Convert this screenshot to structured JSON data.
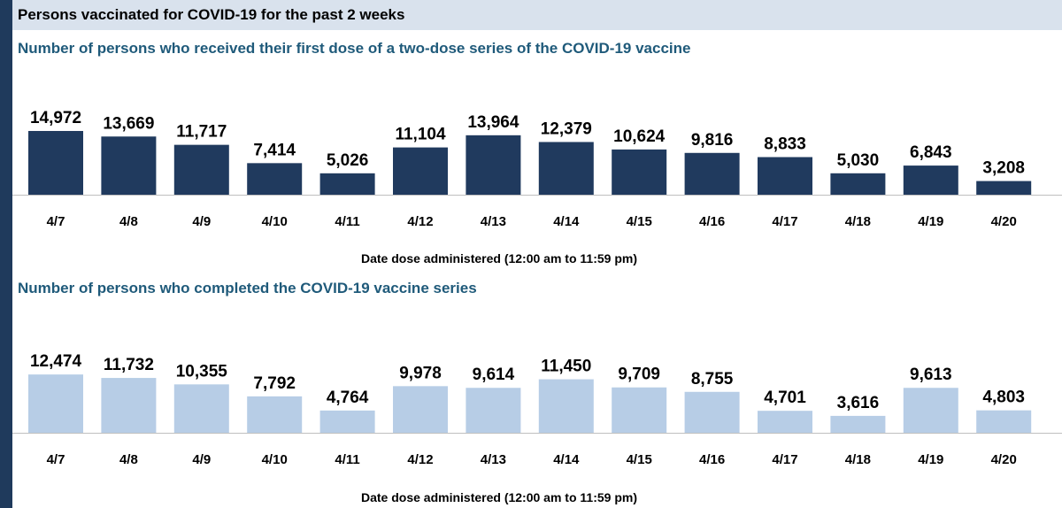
{
  "header": {
    "title": "Persons vaccinated for COVID-19 for the past 2 weeks"
  },
  "colors": {
    "first_dose": "#203a5e",
    "completed": "#b7cde6",
    "subtitle": "#1f5a7a",
    "header_bg": "#d9e2ed",
    "left_rule": "#1f3a5c"
  },
  "chart_data": [
    {
      "type": "bar",
      "title": "Number of persons who received their first dose of a two-dose series of the COVID-19 vaccine",
      "xlabel": "Date dose administered (12:00 am to 11:59 pm)",
      "ylabel": "",
      "categories": [
        "4/7",
        "4/8",
        "4/9",
        "4/10",
        "4/11",
        "4/12",
        "4/13",
        "4/14",
        "4/15",
        "4/16",
        "4/17",
        "4/18",
        "4/19",
        "4/20"
      ],
      "values": [
        14972,
        13669,
        11717,
        7414,
        5026,
        11104,
        13964,
        12379,
        10624,
        9816,
        8833,
        5030,
        6843,
        3208
      ],
      "data_labels": [
        "14,972",
        "13,669",
        "11,717",
        "7,414",
        "5,026",
        "11,104",
        "13,964",
        "12,379",
        "10,624",
        "9,816",
        "8,833",
        "5,030",
        "6,843",
        "3,208"
      ],
      "grid": false,
      "legend": "none"
    },
    {
      "type": "bar",
      "title": "Number of persons who completed the COVID-19 vaccine series",
      "xlabel": "Date dose administered (12:00 am to 11:59 pm)",
      "ylabel": "",
      "categories": [
        "4/7",
        "4/8",
        "4/9",
        "4/10",
        "4/11",
        "4/12",
        "4/13",
        "4/14",
        "4/15",
        "4/16",
        "4/17",
        "4/18",
        "4/19",
        "4/20"
      ],
      "values": [
        12474,
        11732,
        10355,
        7792,
        4764,
        9978,
        9614,
        11450,
        9709,
        8755,
        4701,
        3616,
        9613,
        4803
      ],
      "data_labels": [
        "12,474",
        "11,732",
        "10,355",
        "7,792",
        "4,764",
        "9,978",
        "9,614",
        "11,450",
        "9,709",
        "8,755",
        "4,701",
        "3,616",
        "9,613",
        "4,803"
      ],
      "grid": false,
      "legend": "none"
    }
  ]
}
